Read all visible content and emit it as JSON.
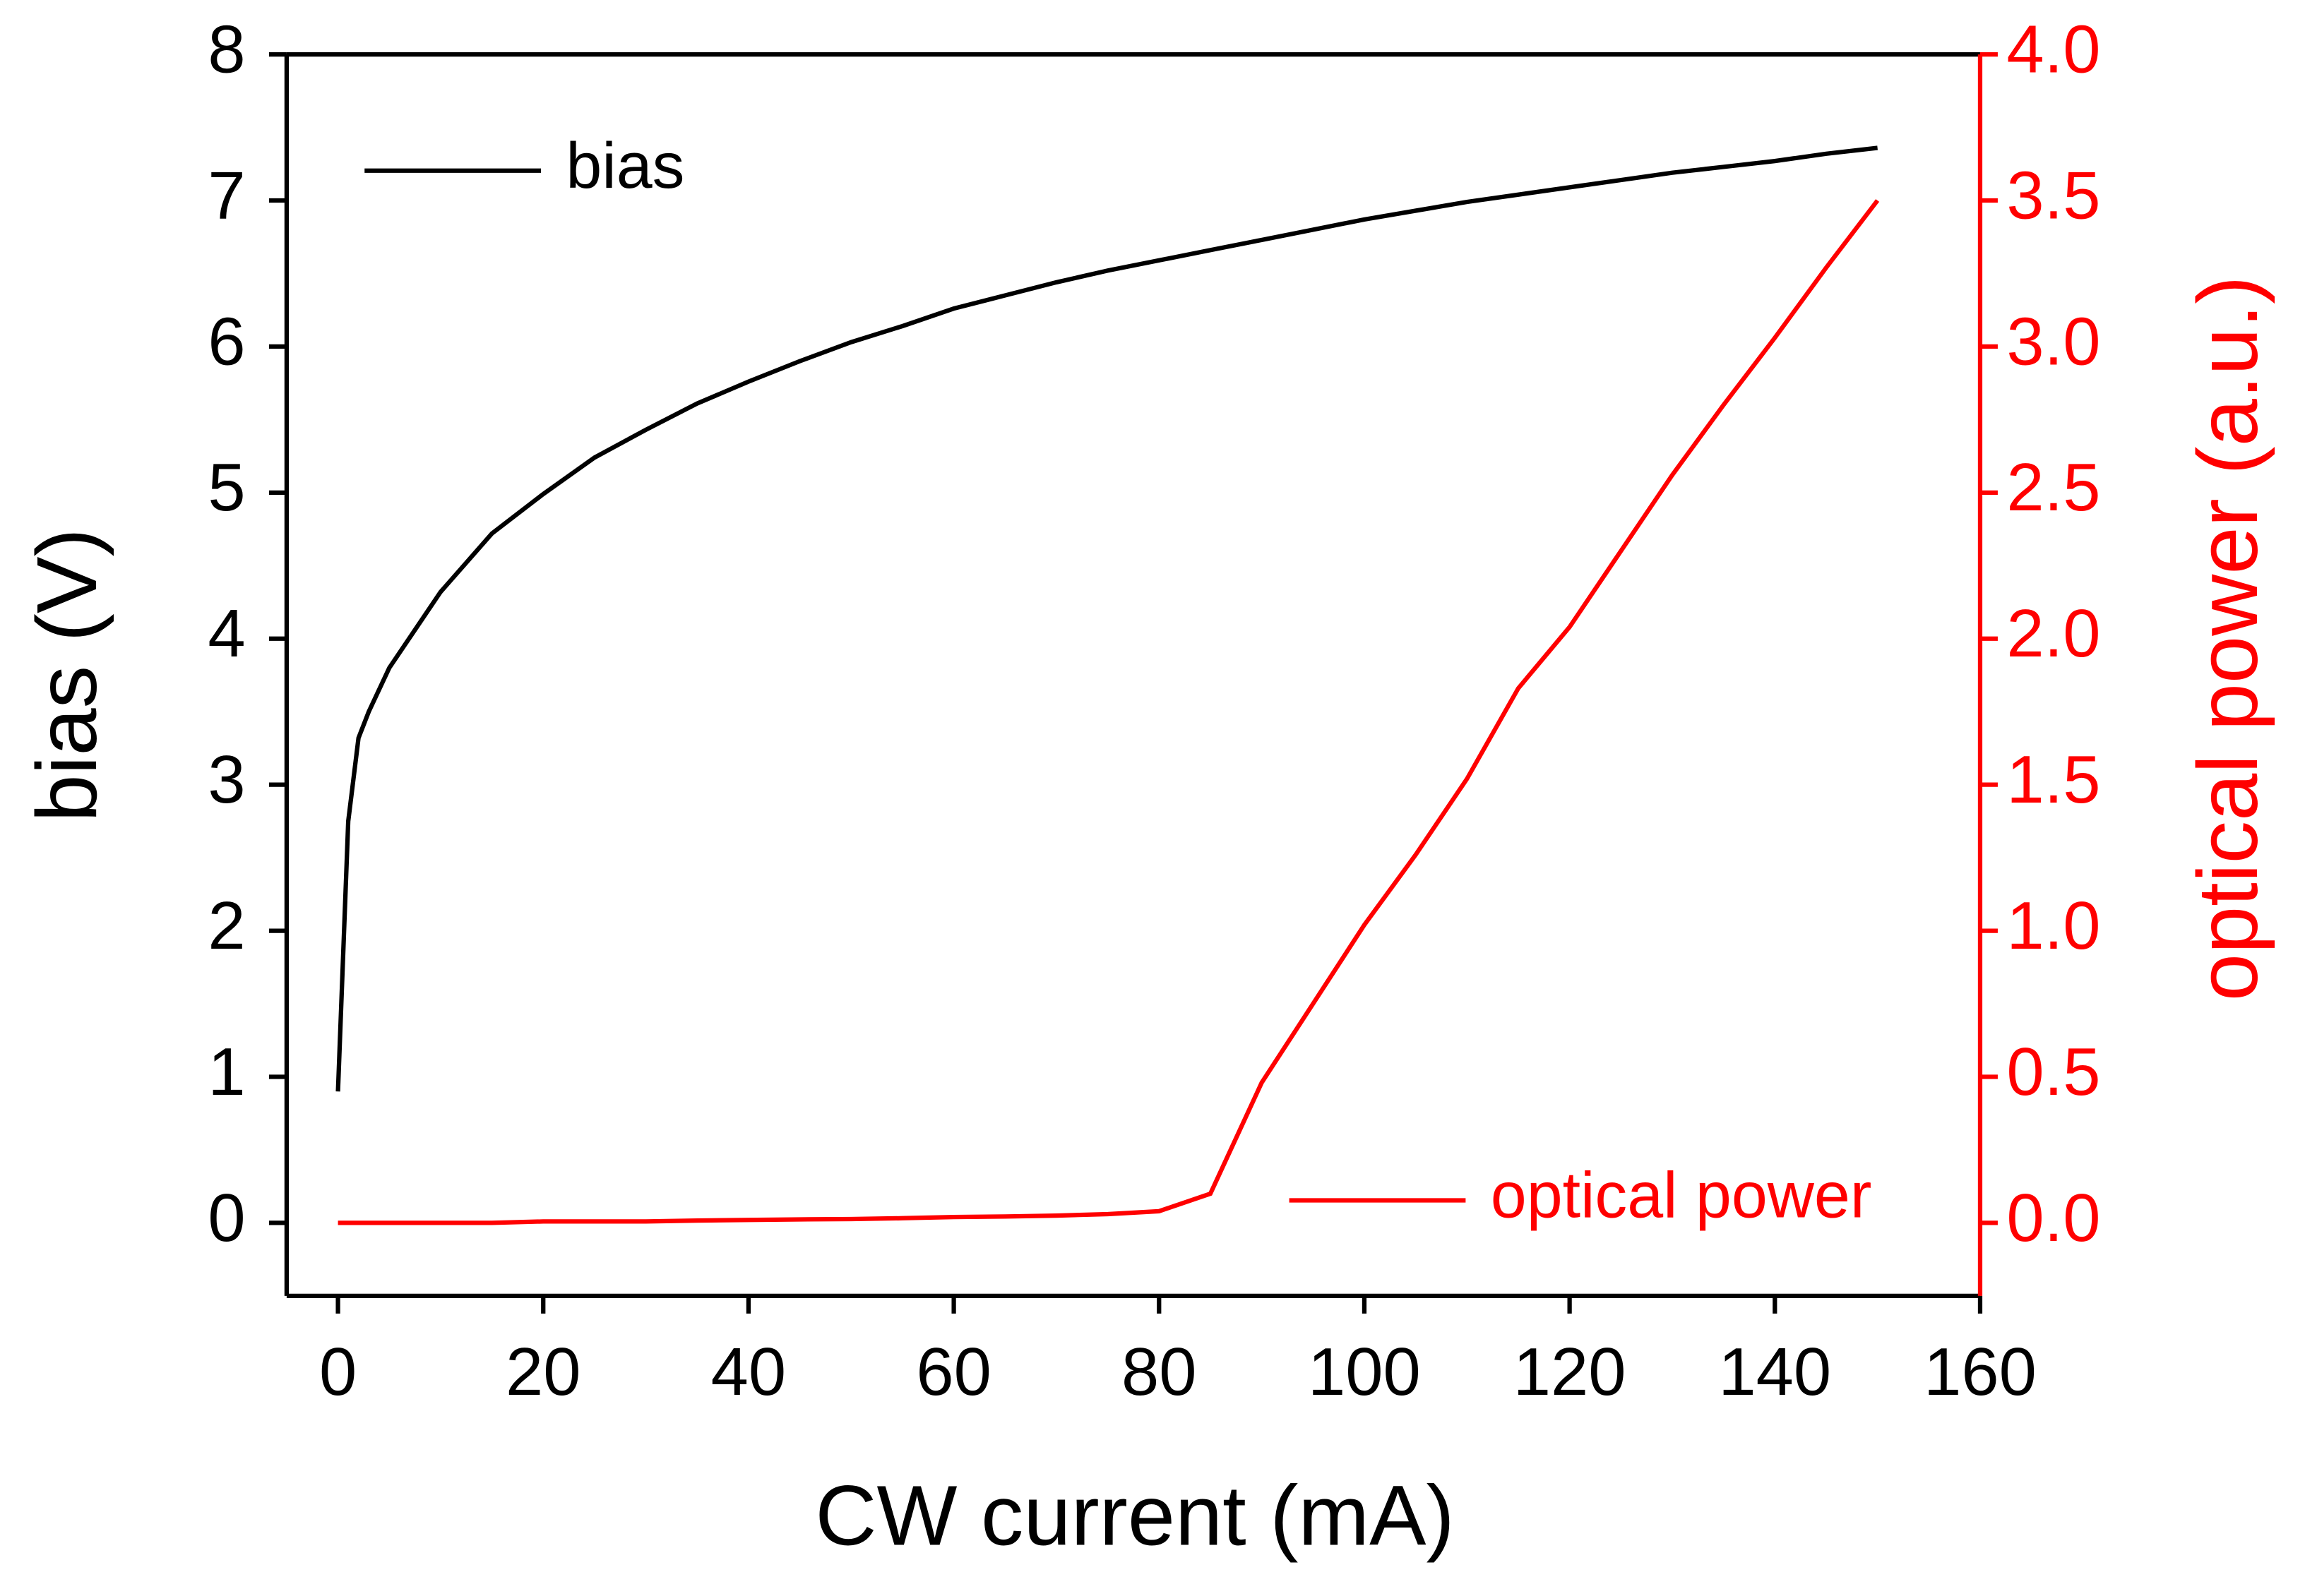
{
  "chart_data": {
    "type": "line",
    "x_label": "CW current (mA)",
    "y_label": "bias (V)",
    "y2_label": "optical power (a.u.)",
    "x": [
      0,
      1,
      2,
      3,
      5,
      10,
      15,
      20,
      25,
      30,
      35,
      40,
      45,
      50,
      55,
      60,
      65,
      70,
      75,
      80,
      85,
      90,
      95,
      100,
      105,
      110,
      115,
      120,
      125,
      130,
      135,
      140,
      145,
      150
    ],
    "series": [
      {
        "name": "bias",
        "color": "#000000",
        "axis": "y",
        "values": [
          0.9,
          2.75,
          3.32,
          3.5,
          3.8,
          4.32,
          4.72,
          4.99,
          5.24,
          5.43,
          5.61,
          5.76,
          5.9,
          6.03,
          6.14,
          6.26,
          6.35,
          6.44,
          6.52,
          6.59,
          6.66,
          6.73,
          6.8,
          6.87,
          6.93,
          6.99,
          7.04,
          7.09,
          7.14,
          7.19,
          7.23,
          7.27,
          7.32,
          7.36
        ]
      },
      {
        "name": "optical power",
        "color": "#ff0000",
        "axis": "y2",
        "values": [
          0,
          0,
          0,
          0,
          0,
          0,
          0,
          0.005,
          0.005,
          0.005,
          0.008,
          0.01,
          0.012,
          0.013,
          0.016,
          0.02,
          0.022,
          0.025,
          0.03,
          0.04,
          0.1,
          0.48,
          0.75,
          1.02,
          1.26,
          1.52,
          1.83,
          2.04,
          2.3,
          2.56,
          2.8,
          3.03,
          3.27,
          3.5
        ]
      }
    ],
    "xlim": [
      -5,
      160
    ],
    "xticks": [
      0,
      20,
      40,
      60,
      80,
      100,
      120,
      140,
      160
    ],
    "ylim": [
      -0.5,
      8
    ],
    "yticks": [
      0,
      1,
      2,
      3,
      4,
      5,
      6,
      7,
      8
    ],
    "y2lim": [
      -0.25,
      4
    ],
    "y2ticks": [
      {
        "value": 0,
        "label": "0.0"
      },
      {
        "value": 0.5,
        "label": "0.5"
      },
      {
        "value": 1,
        "label": "1.0"
      },
      {
        "value": 1.5,
        "label": "1.5"
      },
      {
        "value": 2,
        "label": "2.0"
      },
      {
        "value": 2.5,
        "label": "2.5"
      },
      {
        "value": 3,
        "label": "3.0"
      },
      {
        "value": 3.5,
        "label": "3.5"
      },
      {
        "value": 4,
        "label": "4.0"
      }
    ],
    "y2_color": "#ff0000"
  }
}
